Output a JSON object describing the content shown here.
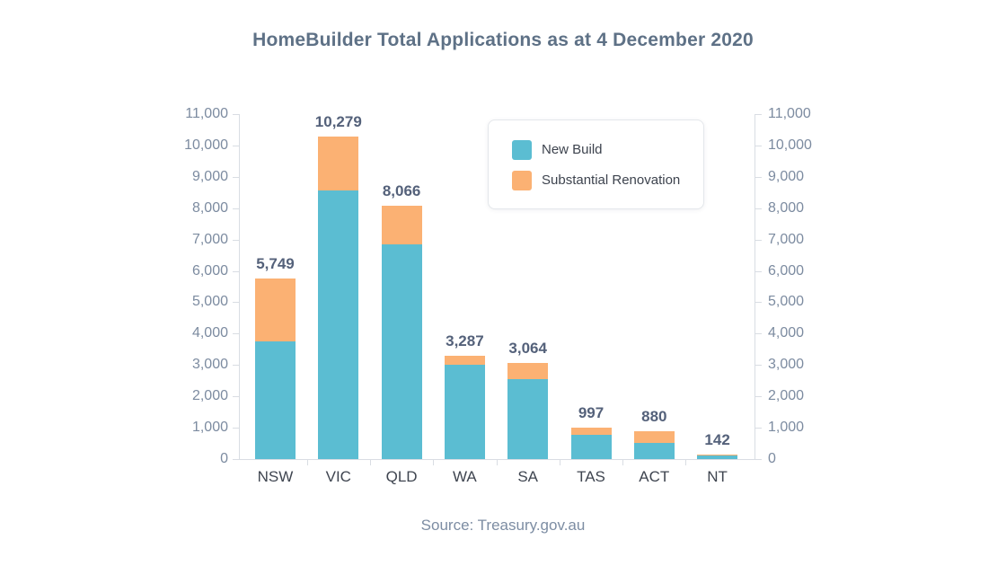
{
  "title": "HomeBuilder Total Applications as at 4 December 2020",
  "source_note": "Source: Treasury.gov.au",
  "legend": {
    "position": "top-right",
    "items": [
      {
        "label": "New Build",
        "color": "#5BBDD2"
      },
      {
        "label": "Substantial Renovation",
        "color": "#FBB173"
      }
    ]
  },
  "colors": {
    "new_build": "#5BBDD2",
    "substantial_renovation": "#FBB173",
    "title_text": "#5E7186",
    "axis_tick_text": "#7C8BA0",
    "data_label_text": "#54617A",
    "category_text": "#3F4550",
    "axis_line": "#D9DDE3",
    "legend_border": "#E4E7EB",
    "background": "#FFFFFF"
  },
  "chart_data": {
    "type": "bar",
    "stacked": true,
    "title": "HomeBuilder Total Applications as at 4 December 2020",
    "categories": [
      "NSW",
      "VIC",
      "QLD",
      "WA",
      "SA",
      "TAS",
      "ACT",
      "NT"
    ],
    "series": [
      {
        "name": "New Build",
        "color": "#5BBDD2",
        "values": [
          3740,
          8560,
          6850,
          3010,
          2550,
          760,
          520,
          105
        ]
      },
      {
        "name": "Substantial Renovation",
        "color": "#FBB173",
        "values": [
          2009,
          1719,
          1216,
          277,
          514,
          237,
          360,
          37
        ]
      }
    ],
    "totals": [
      5749,
      10279,
      8066,
      3287,
      3064,
      997,
      880,
      142
    ],
    "total_labels": [
      "5,749",
      "10,279",
      "8,066",
      "3,287",
      "3,064",
      "997",
      "880",
      "142"
    ],
    "xlabel": "",
    "ylabel": "",
    "ylim": [
      0,
      11000
    ],
    "ytick_step": 1000,
    "ytick_labels": [
      "0",
      "1,000",
      "2,000",
      "3,000",
      "4,000",
      "5,000",
      "6,000",
      "7,000",
      "8,000",
      "9,000",
      "10,000",
      "11,000"
    ],
    "y_axis_sides": [
      "left",
      "right"
    ],
    "grid": false,
    "legend_position": "top-right"
  }
}
